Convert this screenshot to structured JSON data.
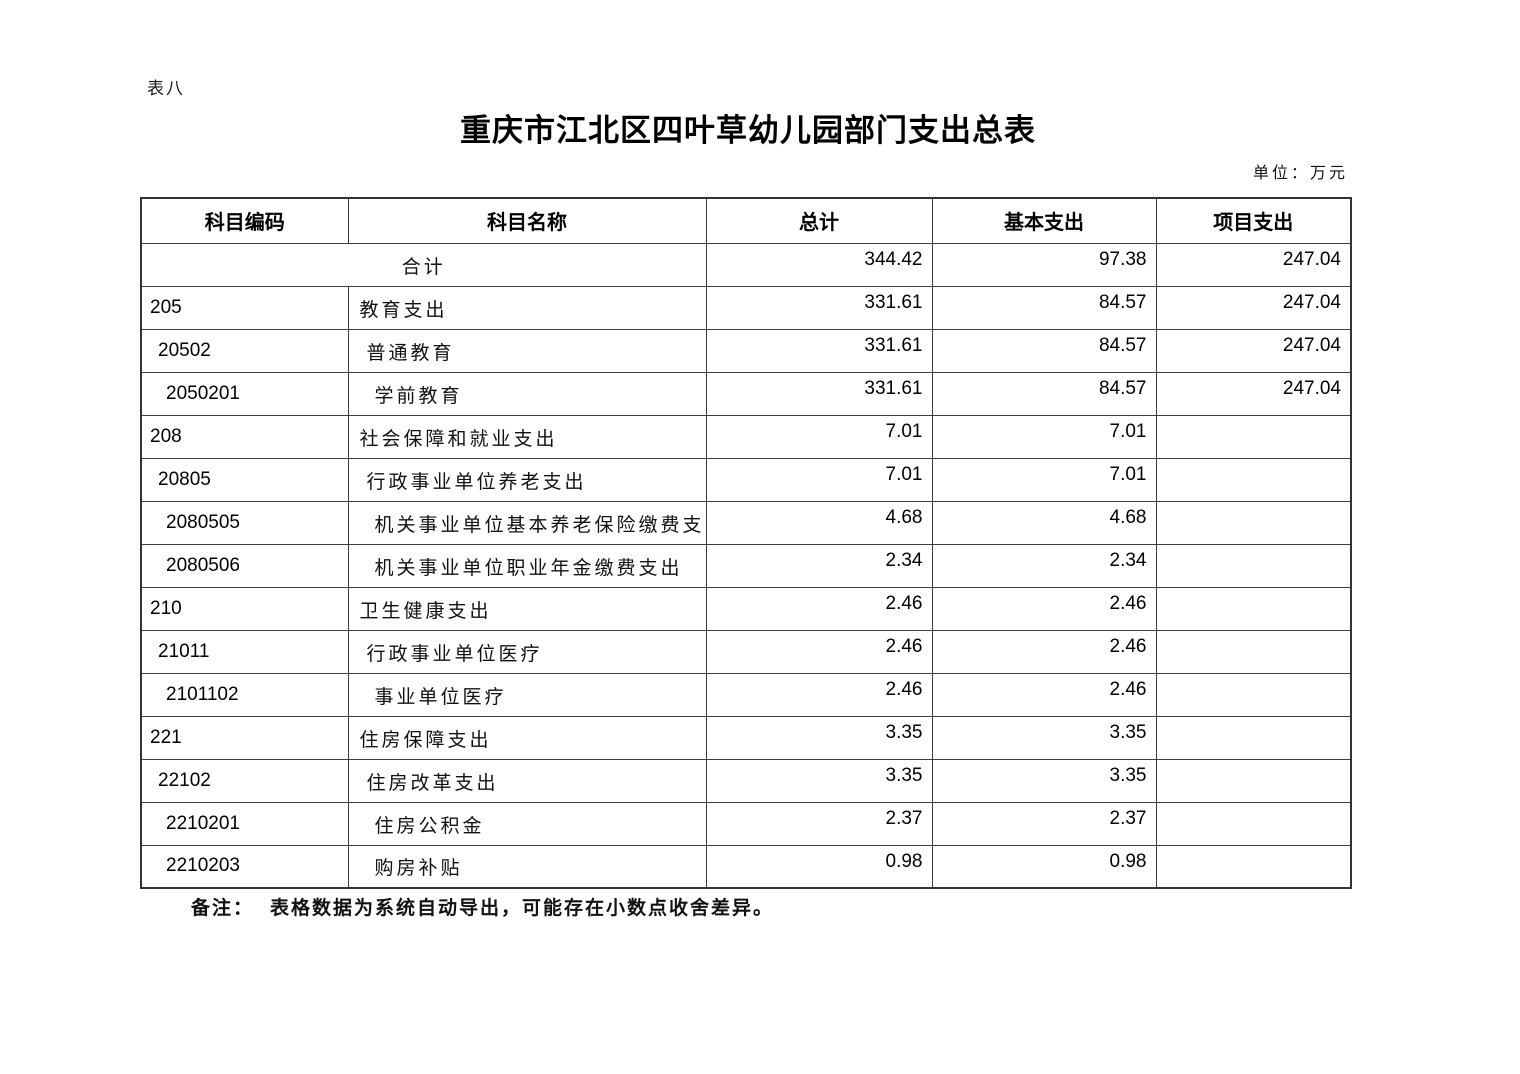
{
  "page": {
    "sheet_label": "表八",
    "title": "重庆市江北区四叶草幼儿园部门支出总表",
    "unit_label": "单位：万元",
    "note_label": "备注：",
    "note_text": "表格数据为系统自动导出，可能存在小数点收舍差异。"
  },
  "table": {
    "columns": [
      "科目编码",
      "科目名称",
      "总计",
      "基本支出",
      "项目支出"
    ],
    "summary_row": {
      "label": "合计",
      "total": "344.42",
      "basic": "97.38",
      "project": "247.04"
    },
    "rows": [
      {
        "code": "205",
        "name": "教育支出",
        "level": 0,
        "total": "331.61",
        "basic": "84.57",
        "project": "247.04"
      },
      {
        "code": "20502",
        "name": "普通教育",
        "level": 1,
        "total": "331.61",
        "basic": "84.57",
        "project": "247.04"
      },
      {
        "code": "2050201",
        "name": "学前教育",
        "level": 2,
        "total": "331.61",
        "basic": "84.57",
        "project": "247.04"
      },
      {
        "code": "208",
        "name": "社会保障和就业支出",
        "level": 0,
        "total": "7.01",
        "basic": "7.01",
        "project": ""
      },
      {
        "code": "20805",
        "name": "行政事业单位养老支出",
        "level": 1,
        "total": "7.01",
        "basic": "7.01",
        "project": ""
      },
      {
        "code": "2080505",
        "name": "机关事业单位基本养老保险缴费支",
        "level": 2,
        "total": "4.68",
        "basic": "4.68",
        "project": ""
      },
      {
        "code": "2080506",
        "name": "机关事业单位职业年金缴费支出",
        "level": 2,
        "total": "2.34",
        "basic": "2.34",
        "project": ""
      },
      {
        "code": "210",
        "name": "卫生健康支出",
        "level": 0,
        "total": "2.46",
        "basic": "2.46",
        "project": ""
      },
      {
        "code": "21011",
        "name": "行政事业单位医疗",
        "level": 1,
        "total": "2.46",
        "basic": "2.46",
        "project": ""
      },
      {
        "code": "2101102",
        "name": "事业单位医疗",
        "level": 2,
        "total": "2.46",
        "basic": "2.46",
        "project": ""
      },
      {
        "code": "221",
        "name": "住房保障支出",
        "level": 0,
        "total": "3.35",
        "basic": "3.35",
        "project": ""
      },
      {
        "code": "22102",
        "name": "住房改革支出",
        "level": 1,
        "total": "3.35",
        "basic": "3.35",
        "project": ""
      },
      {
        "code": "2210201",
        "name": "住房公积金",
        "level": 2,
        "total": "2.37",
        "basic": "2.37",
        "project": ""
      },
      {
        "code": "2210203",
        "name": "购房补贴",
        "level": 2,
        "total": "0.98",
        "basic": "0.98",
        "project": ""
      }
    ]
  }
}
